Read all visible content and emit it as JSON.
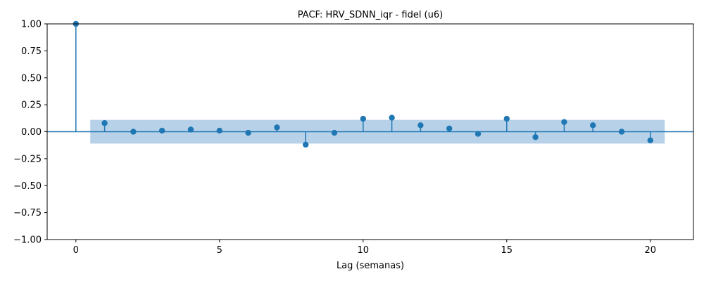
{
  "chart_data": {
    "type": "scatter",
    "subtype": "stem",
    "title": "PACF: HRV_SDNN_iqr - fidel (u6)",
    "xlabel": "Lag (semanas)",
    "ylabel": "",
    "xlim": [
      -1,
      21.5
    ],
    "ylim": [
      -1.0,
      1.0
    ],
    "x_ticks": [
      0,
      5,
      10,
      15,
      20
    ],
    "x_tick_labels": [
      "0",
      "5",
      "10",
      "15",
      "20"
    ],
    "y_ticks": [
      -1.0,
      -0.75,
      -0.5,
      -0.25,
      0.0,
      0.25,
      0.5,
      0.75,
      1.0
    ],
    "y_tick_labels": [
      "−1.00",
      "−0.75",
      "−0.50",
      "−0.25",
      "0.00",
      "0.25",
      "0.50",
      "0.75",
      "1.00"
    ],
    "grid": false,
    "confidence_band": {
      "x_range": [
        0.5,
        20.5
      ],
      "lower": -0.11,
      "upper": 0.11
    },
    "x": [
      0,
      1,
      2,
      3,
      4,
      5,
      6,
      7,
      8,
      9,
      10,
      11,
      12,
      13,
      14,
      15,
      16,
      17,
      18,
      19,
      20
    ],
    "values": [
      1.0,
      0.08,
      0.0,
      0.01,
      0.02,
      0.01,
      -0.01,
      0.04,
      -0.12,
      -0.01,
      0.12,
      0.13,
      0.06,
      0.03,
      -0.02,
      0.12,
      -0.05,
      0.09,
      0.06,
      0.0,
      -0.08
    ],
    "colors": {
      "stem": "#1f77b4",
      "band": "#b7d1e9",
      "axis": "#000000"
    }
  }
}
